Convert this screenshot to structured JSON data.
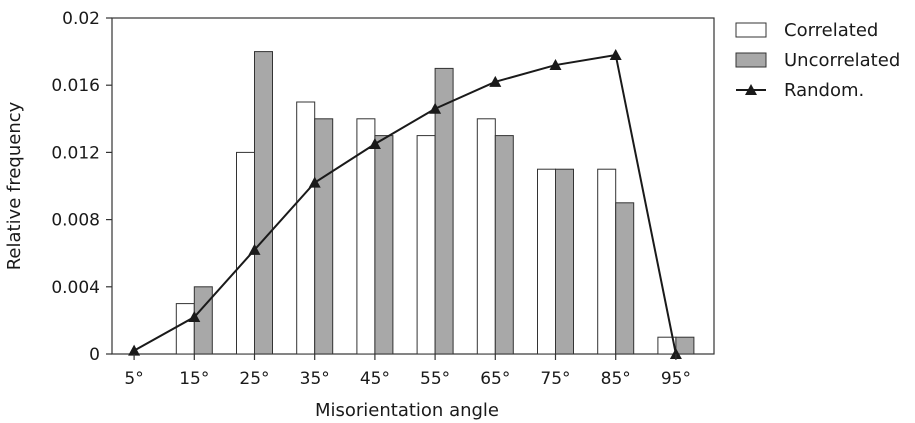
{
  "chart_data": {
    "type": "bar",
    "categories": [
      "5°",
      "15°",
      "25°",
      "35°",
      "45°",
      "55°",
      "65°",
      "75°",
      "85°",
      "95°"
    ],
    "series": [
      {
        "name": "Correlated",
        "kind": "bar",
        "color": "#ffffff",
        "values": [
          0,
          0.003,
          0.012,
          0.015,
          0.014,
          0.013,
          0.014,
          0.011,
          0.011,
          0.001
        ]
      },
      {
        "name": "Uncorrelated",
        "kind": "bar",
        "color": "#a8a8a8",
        "values": [
          0,
          0.004,
          0.018,
          0.014,
          0.013,
          0.017,
          0.013,
          0.011,
          0.009,
          0.001
        ]
      },
      {
        "name": "Random.",
        "kind": "line",
        "marker": "triangle",
        "color": "#1a1a1a",
        "values": [
          0.0002,
          0.0022,
          0.0062,
          0.0102,
          0.0125,
          0.0146,
          0.0162,
          0.0172,
          0.0178,
          0.0
        ]
      }
    ],
    "xlabel": "Misorientation angle",
    "ylabel": "Relative frequency",
    "ylim": [
      0,
      0.02
    ],
    "yticks": [
      "0",
      "0.004",
      "0.008",
      "0.012",
      "0.016",
      "0.02"
    ],
    "ytick_values": [
      0,
      0.004,
      0.008,
      0.012,
      0.016,
      0.02
    ],
    "grid": false,
    "legend_position": "top-right outside"
  }
}
